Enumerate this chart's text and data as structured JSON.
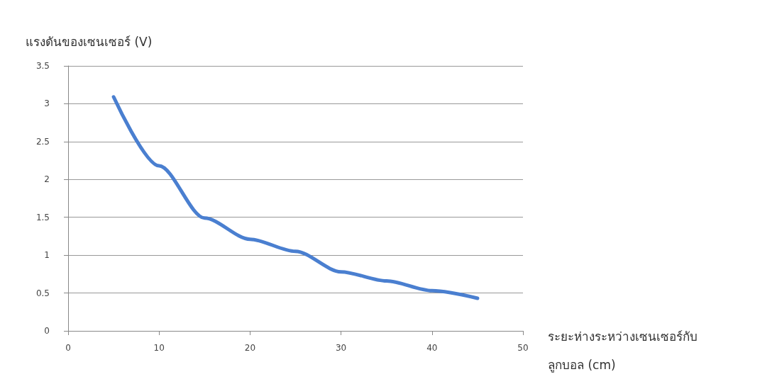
{
  "chart_data": {
    "type": "line",
    "ylabel": "แรงดันของเซนเซอร์ (V)",
    "xlabel": "ระยะห่างระหว่างเซนเซอร์กับ\nลูกบอล (cm)",
    "x": [
      5,
      10,
      15,
      20,
      25,
      30,
      35,
      40,
      45
    ],
    "series": [
      {
        "color": "#4a7fd0",
        "values": [
          3.09,
          2.18,
          1.49,
          1.21,
          1.05,
          0.78,
          0.66,
          0.53,
          0.43
        ]
      }
    ],
    "xlim": [
      0,
      50
    ],
    "xticks": [
      0,
      10,
      20,
      30,
      40,
      50
    ],
    "ylim": [
      0,
      3.5
    ],
    "yticks": [
      0,
      0.5,
      1,
      1.5,
      2,
      2.5,
      3,
      3.5
    ],
    "grid": "y",
    "marker": "none",
    "line_style": "solid"
  }
}
